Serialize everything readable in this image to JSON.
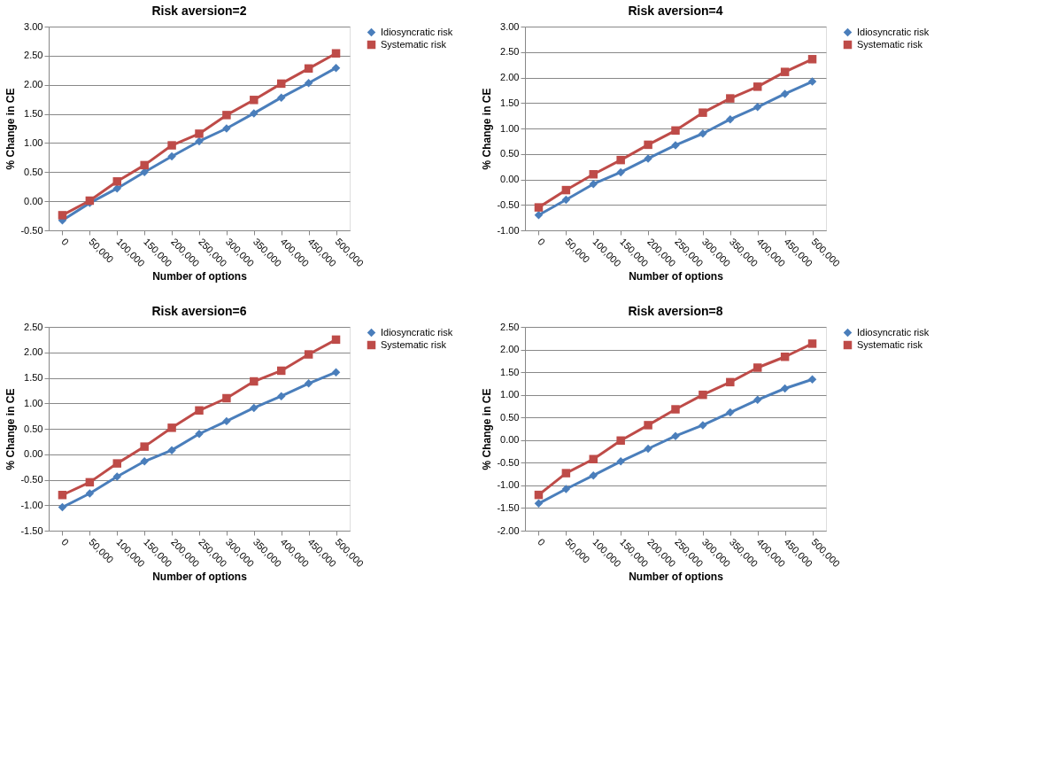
{
  "chart_data": [
    {
      "type": "line",
      "title": "Risk aversion=2",
      "xlabel": "Number of options",
      "ylabel": "% Change in CE",
      "categories": [
        "0",
        "50,000",
        "100,000",
        "150,000",
        "200,000",
        "250,000",
        "300,000",
        "350,000",
        "400,000",
        "450,000",
        "500,000"
      ],
      "ylim": [
        -0.5,
        3
      ],
      "yticks": [
        {
          "value": -0.5,
          "label": "-0.50"
        },
        {
          "value": 0,
          "label": "0.00"
        },
        {
          "value": 0.5,
          "label": "0.50"
        },
        {
          "value": 1,
          "label": "1.00"
        },
        {
          "value": 1.5,
          "label": "1.50"
        },
        {
          "value": 2,
          "label": "2.00"
        },
        {
          "value": 2.5,
          "label": "2.50"
        },
        {
          "value": 3,
          "label": "3.00"
        }
      ],
      "grid": "y",
      "legend": "right",
      "series": [
        {
          "name": "Idiosyncratic risk",
          "color": "#4a7ebb",
          "marker": "diamond",
          "values": [
            -0.33,
            -0.03,
            0.22,
            0.5,
            0.77,
            1.03,
            1.25,
            1.51,
            1.78,
            2.03,
            2.29
          ]
        },
        {
          "name": "Systematic risk",
          "color": "#be4b48",
          "marker": "square",
          "values": [
            -0.24,
            0.01,
            0.34,
            0.62,
            0.96,
            1.16,
            1.48,
            1.74,
            2.02,
            2.28,
            2.54
          ]
        }
      ]
    },
    {
      "type": "line",
      "title": "Risk aversion=4",
      "xlabel": "Number of options",
      "ylabel": "% Change in CE",
      "categories": [
        "0",
        "50,000",
        "100,000",
        "150,000",
        "200,000",
        "250,000",
        "300,000",
        "350,000",
        "400,000",
        "450,000",
        "500,000"
      ],
      "ylim": [
        -1,
        3
      ],
      "yticks": [
        {
          "value": -1,
          "label": "-1.00"
        },
        {
          "value": -0.5,
          "label": "-0.50"
        },
        {
          "value": 0,
          "label": "0.00"
        },
        {
          "value": 0.5,
          "label": "0.50"
        },
        {
          "value": 1,
          "label": "1.00"
        },
        {
          "value": 1.5,
          "label": "1.50"
        },
        {
          "value": 2,
          "label": "2.00"
        },
        {
          "value": 2.5,
          "label": "2.50"
        },
        {
          "value": 3,
          "label": "3.00"
        }
      ],
      "grid": "y",
      "legend": "right",
      "series": [
        {
          "name": "Idiosyncratic risk",
          "color": "#4a7ebb",
          "marker": "diamond",
          "values": [
            -0.7,
            -0.4,
            -0.09,
            0.14,
            0.41,
            0.67,
            0.9,
            1.18,
            1.42,
            1.68,
            1.92
          ]
        },
        {
          "name": "Systematic risk",
          "color": "#be4b48",
          "marker": "square",
          "values": [
            -0.55,
            -0.21,
            0.1,
            0.38,
            0.68,
            0.96,
            1.31,
            1.59,
            1.82,
            2.11,
            2.36
          ]
        }
      ]
    },
    {
      "type": "line",
      "title": "Risk aversion=6",
      "xlabel": "Number of options",
      "ylabel": "% Change in CE",
      "categories": [
        "0",
        "50,000",
        "100,000",
        "150,000",
        "200,000",
        "250,000",
        "300,000",
        "350,000",
        "400,000",
        "450,000",
        "500,000"
      ],
      "ylim": [
        -1.5,
        2.5
      ],
      "yticks": [
        {
          "value": -1.5,
          "label": "-1.50"
        },
        {
          "value": -1,
          "label": "-1.00"
        },
        {
          "value": -0.5,
          "label": "-0.50"
        },
        {
          "value": 0,
          "label": "0.00"
        },
        {
          "value": 0.5,
          "label": "0.50"
        },
        {
          "value": 1,
          "label": "1.00"
        },
        {
          "value": 1.5,
          "label": "1.50"
        },
        {
          "value": 2,
          "label": "2.00"
        },
        {
          "value": 2.5,
          "label": "2.50"
        }
      ],
      "grid": "y",
      "legend": "right",
      "series": [
        {
          "name": "Idiosyncratic risk",
          "color": "#4a7ebb",
          "marker": "diamond",
          "values": [
            -1.04,
            -0.77,
            -0.44,
            -0.14,
            0.08,
            0.4,
            0.65,
            0.91,
            1.14,
            1.39,
            1.61
          ]
        },
        {
          "name": "Systematic risk",
          "color": "#be4b48",
          "marker": "square",
          "values": [
            -0.8,
            -0.55,
            -0.18,
            0.15,
            0.52,
            0.86,
            1.1,
            1.43,
            1.64,
            1.96,
            2.25
          ]
        }
      ]
    },
    {
      "type": "line",
      "title": "Risk aversion=8",
      "xlabel": "Number of options",
      "ylabel": "% Change in CE",
      "categories": [
        "0",
        "50,000",
        "100,000",
        "150,000",
        "200,000",
        "250,000",
        "300,000",
        "350,000",
        "400,000",
        "450,000",
        "500,000"
      ],
      "ylim": [
        -2,
        2.5
      ],
      "yticks": [
        {
          "value": -2,
          "label": "-2.00"
        },
        {
          "value": -1.5,
          "label": "-1.50"
        },
        {
          "value": -1,
          "label": "-1.00"
        },
        {
          "value": -0.5,
          "label": "-0.50"
        },
        {
          "value": 0,
          "label": "0.00"
        },
        {
          "value": 0.5,
          "label": "0.50"
        },
        {
          "value": 1,
          "label": "1.00"
        },
        {
          "value": 1.5,
          "label": "1.50"
        },
        {
          "value": 2,
          "label": "2.00"
        },
        {
          "value": 2.5,
          "label": "2.50"
        }
      ],
      "grid": "y",
      "legend": "right",
      "series": [
        {
          "name": "Idiosyncratic risk",
          "color": "#4a7ebb",
          "marker": "diamond",
          "values": [
            -1.4,
            -1.08,
            -0.78,
            -0.47,
            -0.19,
            0.09,
            0.33,
            0.61,
            0.89,
            1.14,
            1.34
          ]
        },
        {
          "name": "Systematic risk",
          "color": "#be4b48",
          "marker": "square",
          "values": [
            -1.21,
            -0.73,
            -0.42,
            -0.01,
            0.33,
            0.68,
            1.0,
            1.28,
            1.6,
            1.84,
            2.13
          ]
        }
      ]
    }
  ]
}
